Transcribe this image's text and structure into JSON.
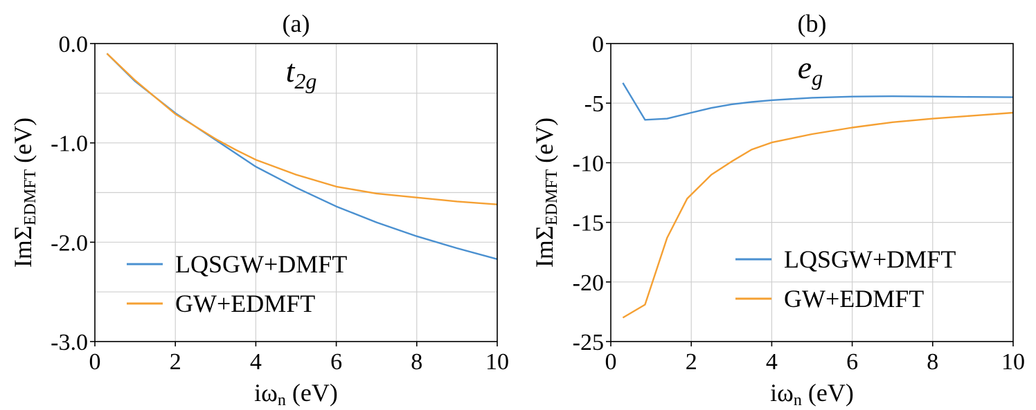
{
  "chart_data": [
    {
      "type": "line",
      "panel_label": "(a)",
      "annotation": {
        "main": "t",
        "sub": "2g"
      },
      "xlabel": {
        "main": "iω",
        "sub": "n",
        "rest": " (eV)"
      },
      "ylabel": {
        "main": "ImΣ",
        "sub": "EDMFT",
        "rest": " (eV)"
      },
      "xlim": [
        0,
        10
      ],
      "ylim": [
        -3.0,
        0.0
      ],
      "xticks": [
        0,
        2,
        4,
        6,
        8,
        10
      ],
      "xtick_labels": [
        "0",
        "2",
        "4",
        "6",
        "8",
        "10"
      ],
      "yticks": [
        0.0,
        -1.0,
        -2.0,
        -3.0
      ],
      "ytick_labels": [
        "0.0",
        "-1.0",
        "-2.0",
        "-3.0"
      ],
      "ygrid": [
        0.0,
        -0.5,
        -1.0,
        -1.5,
        -2.0,
        -2.5,
        -3.0
      ],
      "legend_position": "lower-left",
      "series": [
        {
          "name": "LQSGW+DMFT",
          "color": "#4a90d0",
          "x": [
            0.3,
            1,
            2,
            3,
            4,
            5,
            6,
            7,
            8,
            9,
            10
          ],
          "y": [
            -0.1,
            -0.38,
            -0.7,
            -0.97,
            -1.24,
            -1.45,
            -1.64,
            -1.8,
            -1.94,
            -2.06,
            -2.17
          ]
        },
        {
          "name": "GW+EDMFT",
          "color": "#f5a033",
          "x": [
            0.3,
            1,
            2,
            3,
            3.5,
            4,
            5,
            6,
            7,
            8,
            9,
            10
          ],
          "y": [
            -0.1,
            -0.37,
            -0.71,
            -0.96,
            -1.07,
            -1.17,
            -1.32,
            -1.44,
            -1.51,
            -1.55,
            -1.59,
            -1.62
          ]
        }
      ]
    },
    {
      "type": "line",
      "panel_label": "(b)",
      "annotation": {
        "main": "e",
        "sub": "g"
      },
      "xlabel": {
        "main": "iω",
        "sub": "n",
        "rest": " (eV)"
      },
      "ylabel": {
        "main": "ImΣ",
        "sub": "EDMFT",
        "rest": " (eV)"
      },
      "xlim": [
        0,
        10
      ],
      "ylim": [
        -25,
        0
      ],
      "xticks": [
        0,
        2,
        4,
        6,
        8,
        10
      ],
      "xtick_labels": [
        "0",
        "2",
        "4",
        "6",
        "8",
        "10"
      ],
      "yticks": [
        0,
        -5,
        -10,
        -15,
        -20,
        -25
      ],
      "ytick_labels": [
        "0",
        "-5",
        "-10",
        "-15",
        "-20",
        "-25"
      ],
      "ygrid": [
        0,
        -5,
        -10,
        -15,
        -20,
        -25
      ],
      "legend_position": "lower-right",
      "series": [
        {
          "name": "LQSGW+DMFT",
          "color": "#4a90d0",
          "x": [
            0.3,
            0.85,
            1.4,
            2,
            2.5,
            3,
            3.5,
            4,
            5,
            6,
            7,
            8,
            9,
            10
          ],
          "y": [
            -3.3,
            -6.4,
            -6.3,
            -5.8,
            -5.4,
            -5.1,
            -4.9,
            -4.75,
            -4.55,
            -4.45,
            -4.42,
            -4.45,
            -4.48,
            -4.5
          ]
        },
        {
          "name": "GW+EDMFT",
          "color": "#f5a033",
          "x": [
            0.3,
            0.85,
            1.4,
            1.9,
            2.5,
            3,
            3.5,
            4,
            5,
            6,
            7,
            8,
            9,
            10
          ],
          "y": [
            -23,
            -21.9,
            -16.3,
            -13,
            -11,
            -9.9,
            -8.9,
            -8.3,
            -7.6,
            -7.05,
            -6.6,
            -6.3,
            -6.05,
            -5.8
          ]
        }
      ]
    }
  ]
}
